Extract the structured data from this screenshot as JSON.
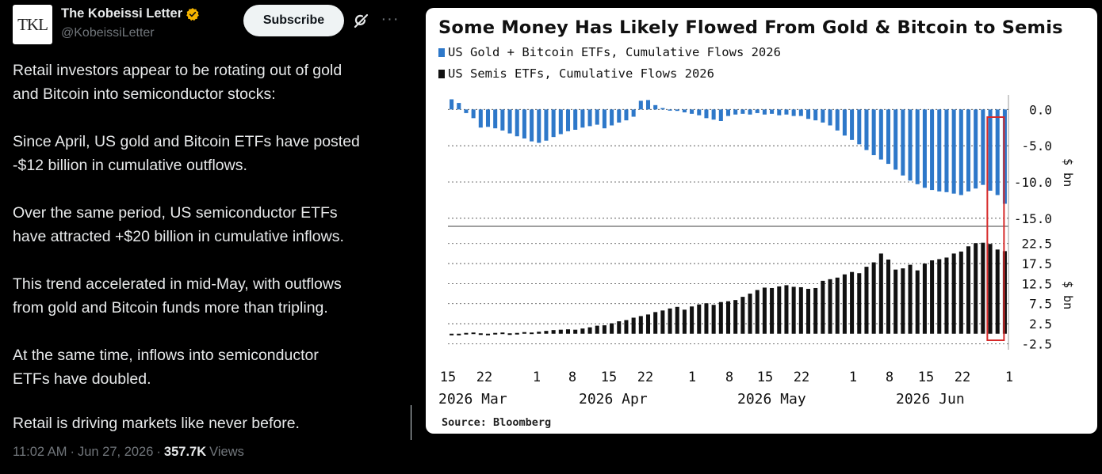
{
  "tweet": {
    "avatar_text": "TKL",
    "author_name": "The Kobeissi Letter",
    "author_handle": "@KobeissiLetter",
    "subscribe_label": "Subscribe",
    "paragraphs": [
      [
        "Retail investors appear to be rotating out of gold",
        "and Bitcoin into semiconductor stocks:"
      ],
      [
        "Since April, US gold and Bitcoin ETFs have posted",
        "-$12 billion in cumulative outflows."
      ],
      [
        "Over the same period, US semiconductor ETFs",
        "have attracted +$20 billion in cumulative inflows."
      ],
      [
        "This trend accelerated in mid-May, with outflows",
        "from gold and Bitcoin funds more than tripling."
      ],
      [
        "At the same time, inflows into semiconductor",
        "ETFs have doubled."
      ],
      [
        "Retail is driving markets like never before."
      ]
    ],
    "time": "11:02 AM",
    "date": "Jun 27, 2026",
    "sep": "·",
    "views_count": "357.7K",
    "views_label": "Views"
  },
  "colors": {
    "gold_btc_bar": "#2e78c9",
    "semis_bar": "#111111",
    "highlight_box": "#d62a2a",
    "verified": "#f4b400"
  },
  "chart_data": [
    {
      "type": "bar",
      "title": "Some Money Has Likely Flowed From Gold & Bitcoin to Semis",
      "source": "Source: Bloomberg",
      "series_name": "US Gold + Bitcoin ETFs, Cumulative Flows 2026",
      "ylabel": "$ bn",
      "ylim": [
        -16,
        2
      ],
      "yticks": [
        "0.0",
        "-5.0",
        "-10.0",
        "-15.0"
      ],
      "ytick_values": [
        0,
        -5,
        -10,
        -15
      ],
      "values": [
        1.4,
        0.9,
        -0.5,
        -1.2,
        -2.5,
        -2.4,
        -2.6,
        -2.9,
        -3.3,
        -3.7,
        -4.0,
        -4.4,
        -4.6,
        -4.3,
        -3.8,
        -3.4,
        -3.0,
        -2.8,
        -2.5,
        -2.3,
        -2.1,
        -2.6,
        -2.2,
        -1.8,
        -1.5,
        -1.0,
        1.2,
        1.3,
        0.6,
        0.2,
        -0.1,
        -0.2,
        -0.4,
        -0.6,
        -0.8,
        -1.2,
        -1.4,
        -1.6,
        -0.9,
        -0.7,
        -0.6,
        -0.7,
        -0.5,
        -0.7,
        -0.6,
        -0.8,
        -0.7,
        -0.9,
        -0.9,
        -1.3,
        -1.5,
        -1.8,
        -2.2,
        -2.9,
        -3.6,
        -4.2,
        -4.8,
        -5.6,
        -6.3,
        -6.9,
        -7.5,
        -8.3,
        -9.1,
        -9.8,
        -10.3,
        -10.8,
        -11.1,
        -11.3,
        -11.4,
        -11.6,
        -11.8,
        -11.3,
        -10.9,
        -10.4,
        -11.2,
        -11.8,
        -13.0
      ]
    },
    {
      "type": "bar",
      "series_name": "US Semis ETFs, Cumulative Flows 2026",
      "ylabel": "$ bn",
      "ylim": [
        -4,
        26
      ],
      "yticks": [
        "22.5",
        "17.5",
        "12.5",
        "7.5",
        "2.5",
        "-2.5"
      ],
      "ytick_values": [
        22.5,
        17.5,
        12.5,
        7.5,
        2.5,
        -2.5
      ],
      "values": [
        0.0,
        0.0,
        0.2,
        0.3,
        0.1,
        0.0,
        0.2,
        0.3,
        0.1,
        0.2,
        0.4,
        0.3,
        0.5,
        0.7,
        0.9,
        1.0,
        1.1,
        1.0,
        1.3,
        1.6,
        2.0,
        2.1,
        2.6,
        3.1,
        3.4,
        4.0,
        4.4,
        4.8,
        5.4,
        5.8,
        6.3,
        6.7,
        6.0,
        6.8,
        7.3,
        7.6,
        7.2,
        7.9,
        8.1,
        8.4,
        9.2,
        10.0,
        10.9,
        11.5,
        11.4,
        11.8,
        12.1,
        11.7,
        11.6,
        11.2,
        11.4,
        13.2,
        13.6,
        14.0,
        14.8,
        15.4,
        15.1,
        16.7,
        17.8,
        20.0,
        18.5,
        16.0,
        16.3,
        17.2,
        15.8,
        17.5,
        18.3,
        18.6,
        19.0,
        20.0,
        20.5,
        21.8,
        22.6,
        22.7,
        22.4,
        21.0,
        20.6
      ]
    },
    {
      "type": "axis",
      "tick_labels": [
        "15",
        "22",
        "1",
        "8",
        "15",
        "22",
        "1",
        "8",
        "15",
        "22",
        "1",
        "8",
        "15",
        "22",
        "1"
      ],
      "month_labels": [
        "2026 Mar",
        "2026 Apr",
        "2026 May",
        "2026 Jun"
      ],
      "highlight": "last week of June (Jun 22 onward)"
    }
  ]
}
